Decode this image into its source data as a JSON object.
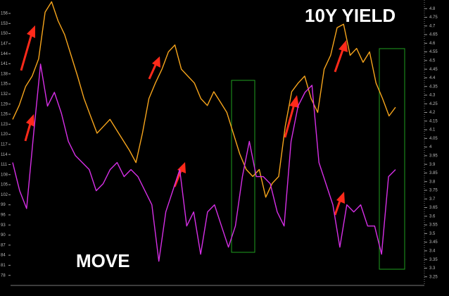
{
  "chart_data": {
    "type": "line",
    "series": [
      {
        "name": "10Y YIELD",
        "color": "#f7a51c",
        "axis": "y2",
        "values": [
          4.16,
          4.24,
          4.35,
          4.41,
          4.51,
          4.78,
          4.84,
          4.73,
          4.65,
          4.53,
          4.41,
          4.28,
          4.18,
          4.08,
          4.12,
          4.16,
          4.1,
          4.04,
          3.98,
          3.91,
          4.08,
          4.28,
          4.37,
          4.45,
          4.55,
          4.59,
          4.45,
          4.41,
          4.37,
          4.28,
          4.24,
          4.32,
          4.26,
          4.2,
          4.08,
          3.96,
          3.87,
          3.83,
          3.87,
          3.71,
          3.79,
          3.83,
          4.12,
          4.32,
          4.37,
          4.41,
          4.28,
          4.2,
          4.45,
          4.53,
          4.69,
          4.71,
          4.53,
          4.57,
          4.49,
          4.55,
          4.37,
          4.28,
          4.18,
          4.23
        ]
      },
      {
        "name": "MOVE",
        "color": "#d62fe6",
        "values": [
          111.6,
          103.2,
          97.9,
          120,
          140.9,
          128.4,
          132.5,
          126.3,
          117.9,
          113.7,
          111.6,
          109.5,
          103.2,
          105.3,
          109.5,
          111.6,
          107.4,
          109.5,
          107.4,
          103.2,
          99,
          82.2,
          96.9,
          103.2,
          109.5,
          92.7,
          96.9,
          84.3,
          96.9,
          99,
          92.7,
          86.4,
          92.7,
          107.4,
          117.9,
          107.4,
          107.4,
          105.3,
          96.9,
          92.7,
          117.9,
          128.4,
          132.5,
          134.6,
          111.6,
          105.3,
          99,
          86.4,
          99,
          96.9,
          99,
          92.7,
          92.7,
          84.3,
          107.4,
          109.5
        ]
      }
    ],
    "ylim": [
      75,
      160
    ],
    "yticks": [
      78,
      81,
      84,
      87,
      90,
      93,
      96,
      99,
      102,
      105,
      108,
      111,
      114,
      117,
      120,
      123,
      126,
      129,
      132,
      135,
      138,
      141,
      144,
      147,
      150,
      153,
      156
    ],
    "y2lim": [
      3.2,
      4.85
    ],
    "y2ticks": [
      3.25,
      3.3,
      3.35,
      3.4,
      3.45,
      3.5,
      3.55,
      3.6,
      3.65,
      3.7,
      3.75,
      3.8,
      3.85,
      3.9,
      3.95,
      4,
      4.05,
      4.1,
      4.15,
      4.2,
      4.25,
      4.3,
      4.35,
      4.4,
      4.45,
      4.5,
      4.55,
      4.6,
      4.65,
      4.7,
      4.75,
      4.8
    ]
  }
}
